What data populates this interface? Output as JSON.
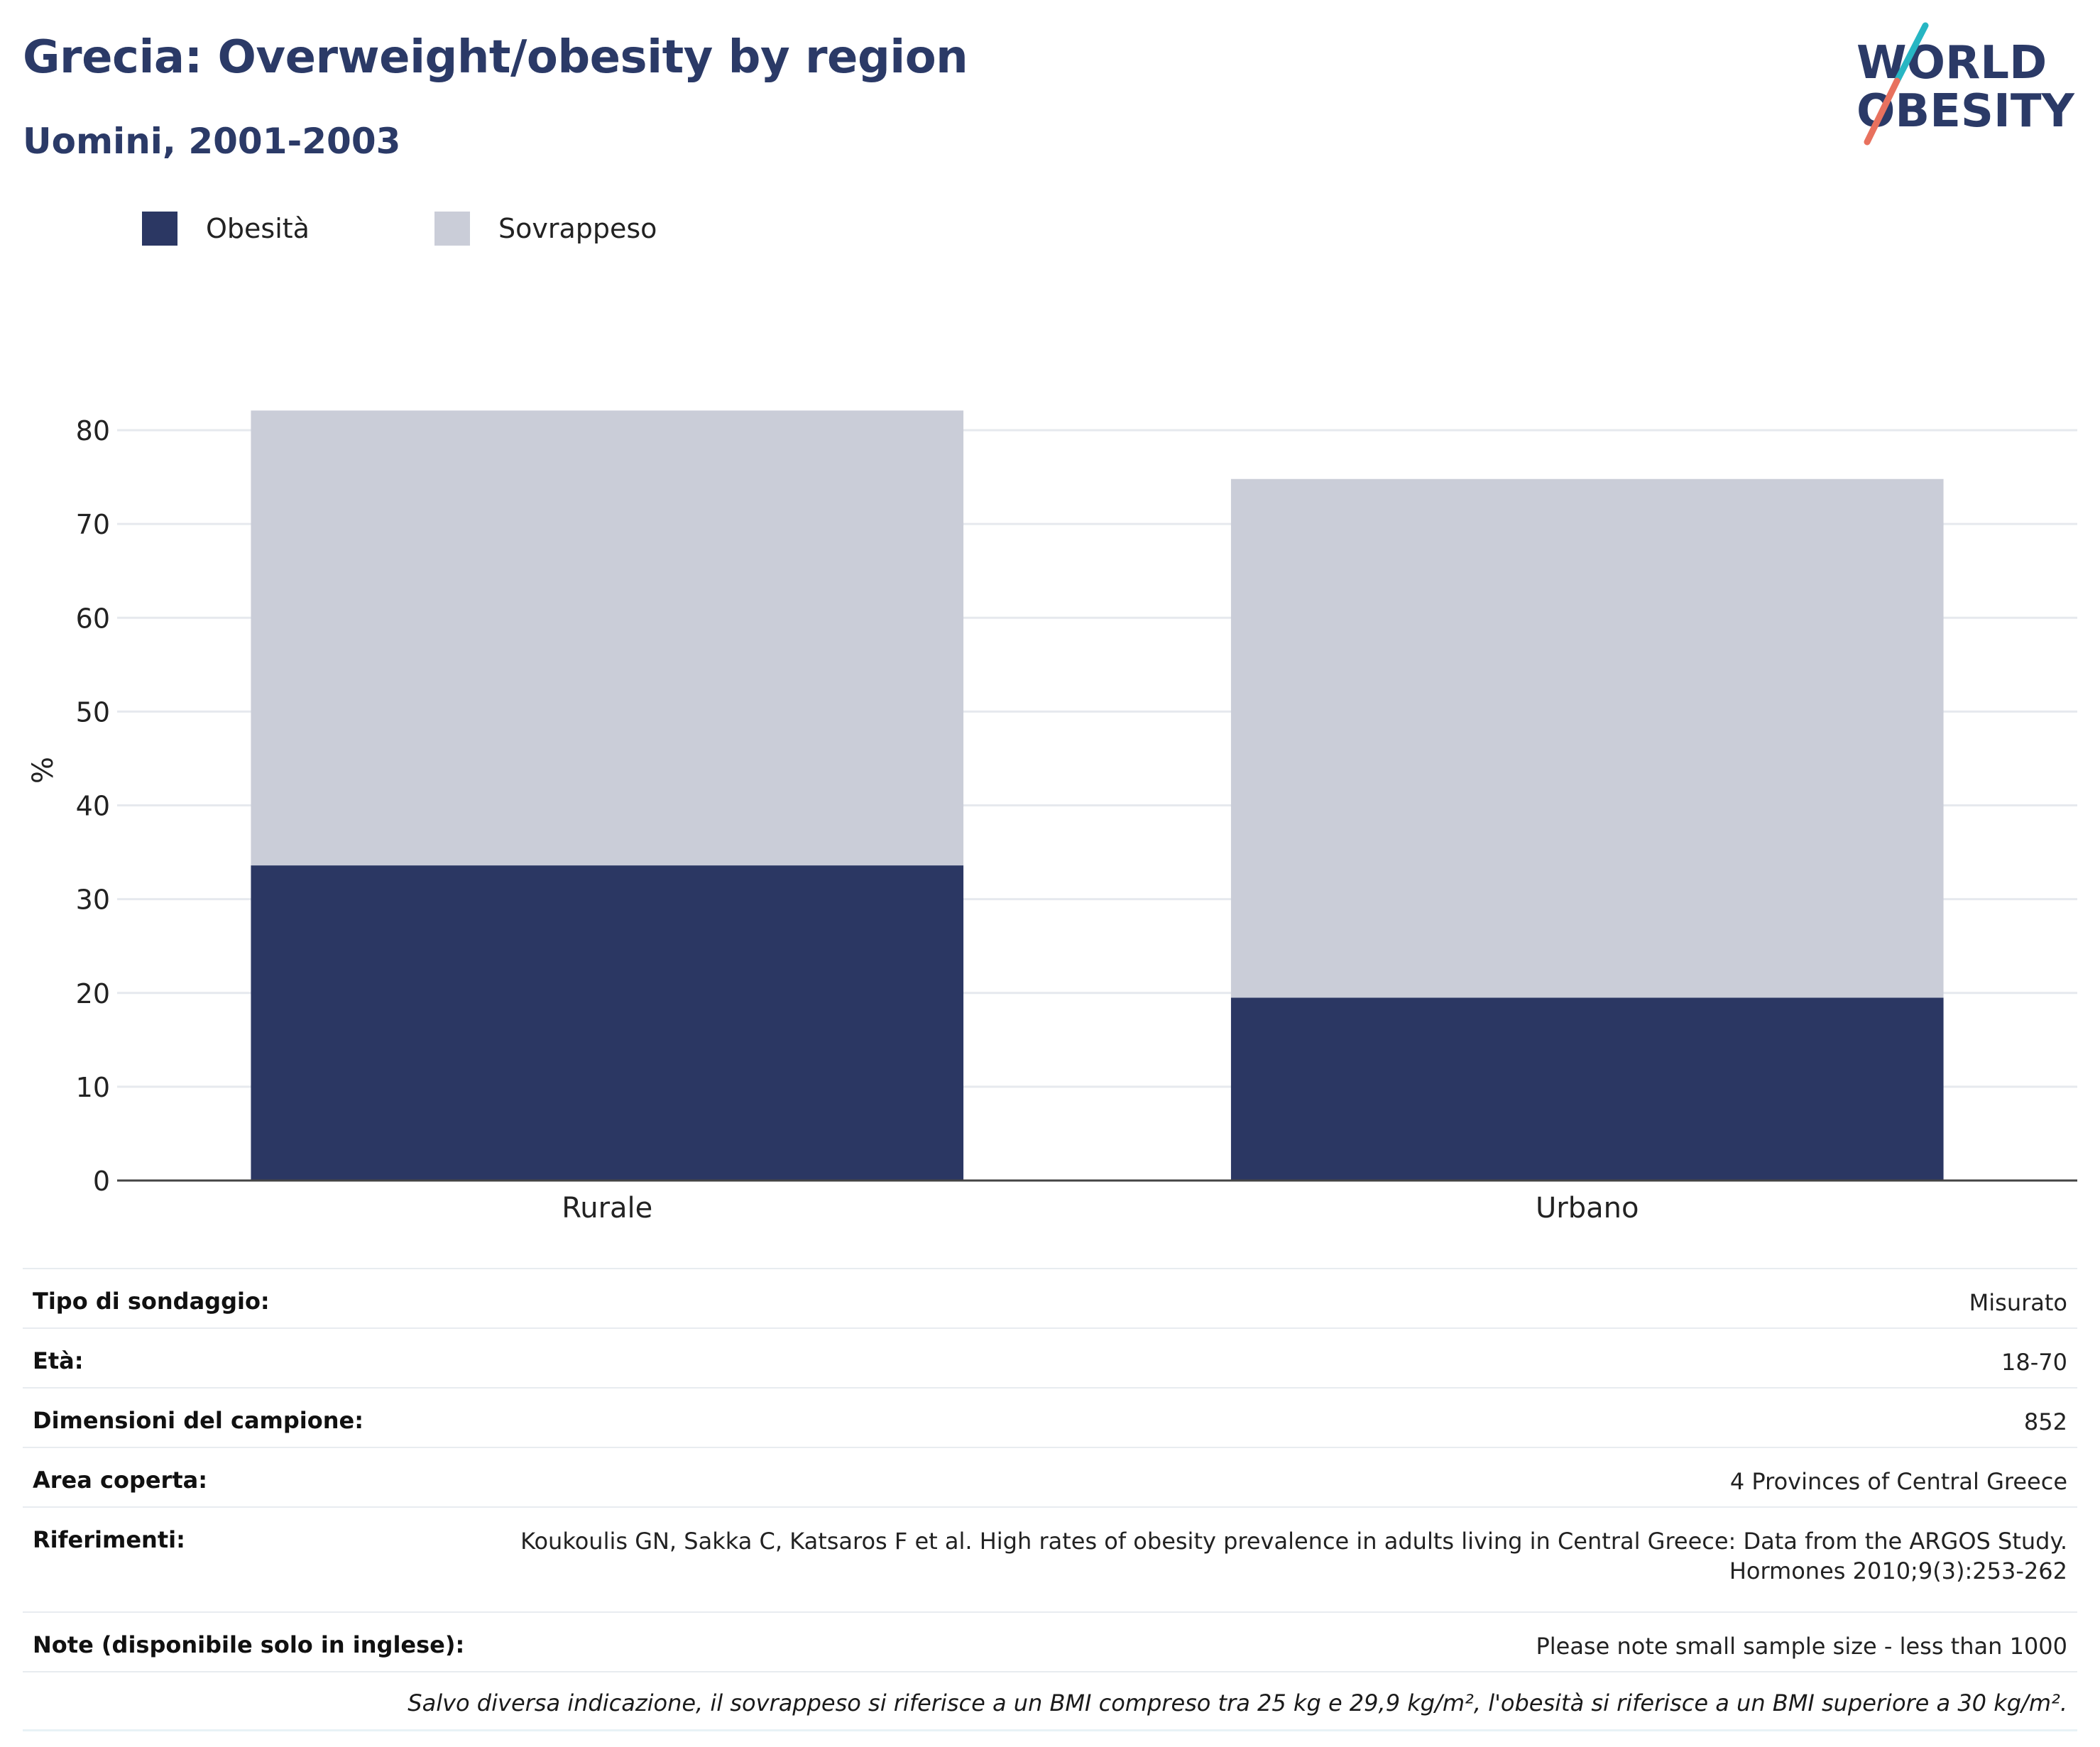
{
  "header": {
    "title": "Grecia: Overweight/obesity by region",
    "subtitle": "Uomini, 2001-2003",
    "logo_line1": "WORLD",
    "logo_line2": "OBESITY"
  },
  "colors": {
    "obesity": "#2b3763",
    "overweight": "#cacdd8",
    "title": "#2b3a67",
    "logo_text": "#2b3a67",
    "logo_slash_top": "#27b6c3",
    "logo_slash_bottom": "#e8715e"
  },
  "chart_data": {
    "type": "bar",
    "stacked": true,
    "categories": [
      "Rurale",
      "Urbano"
    ],
    "series": [
      {
        "name": "Obesità",
        "values": [
          33.6,
          19.5
        ]
      },
      {
        "name": "Sovrappeso",
        "values": [
          48.5,
          55.3
        ]
      }
    ],
    "title": "Grecia: Overweight/obesity by region",
    "subtitle": "Uomini, 2001-2003",
    "xlabel": "",
    "ylabel": "%",
    "ylim": [
      0,
      85
    ],
    "yticks": [
      0,
      10,
      20,
      30,
      40,
      50,
      60,
      70,
      80
    ],
    "grid": true,
    "legend": "top-left"
  },
  "info": [
    {
      "label": "Tipo di sondaggio:",
      "value": "Misurato"
    },
    {
      "label": "Età:",
      "value": "18-70"
    },
    {
      "label": "Dimensioni del campione:",
      "value": "852"
    },
    {
      "label": "Area coperta:",
      "value": "4 Provinces of Central Greece"
    },
    {
      "label": "Riferimenti:",
      "value_line1": "Koukoulis GN, Sakka C, Katsaros F et al. High rates of obesity prevalence in adults living in Central Greece: Data from the ARGOS Study.",
      "value_line2": "Hormones 2010;9(3):253-262"
    },
    {
      "label": "Note (disponibile solo in inglese):",
      "value": "Please note small sample size - less than 1000"
    }
  ],
  "footnote": "Salvo diversa indicazione, il sovrappeso si riferisce a un BMI compreso tra 25 kg e 29,9 kg/m², l'obesità si riferisce a un BMI superiore a 30 kg/m²."
}
